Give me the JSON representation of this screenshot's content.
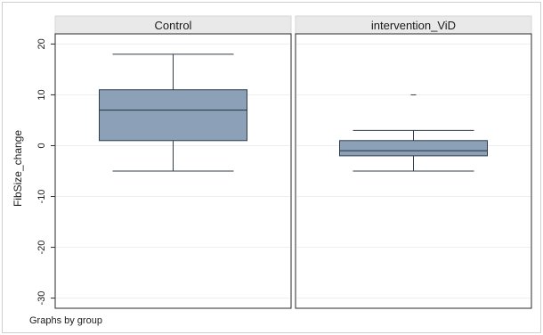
{
  "chart_data": {
    "type": "box",
    "ylabel": "FibSize_change",
    "ylim": [
      -32,
      22
    ],
    "yticks": [
      20,
      10,
      0,
      -10,
      -20,
      -30
    ],
    "grid": true,
    "note": "Graphs by group",
    "panels": [
      {
        "title": "Control",
        "box": {
          "whisker_low": -5,
          "q1": 1,
          "median": 7,
          "q3": 11,
          "whisker_high": 18
        },
        "outliers": []
      },
      {
        "title": "intervention_ViD",
        "box": {
          "whisker_low": -5,
          "q1": -2,
          "median": -1,
          "q3": 1,
          "whisker_high": 3
        },
        "outliers": [
          10
        ]
      }
    ],
    "colors": {
      "box_fill": "#8ca1b7",
      "box_stroke": "#2f3d4c",
      "header_fill": "#e9e9e9",
      "grid": "#eeeeee",
      "outer_background": "#ffffff",
      "plot_background": "#ffffff"
    }
  }
}
